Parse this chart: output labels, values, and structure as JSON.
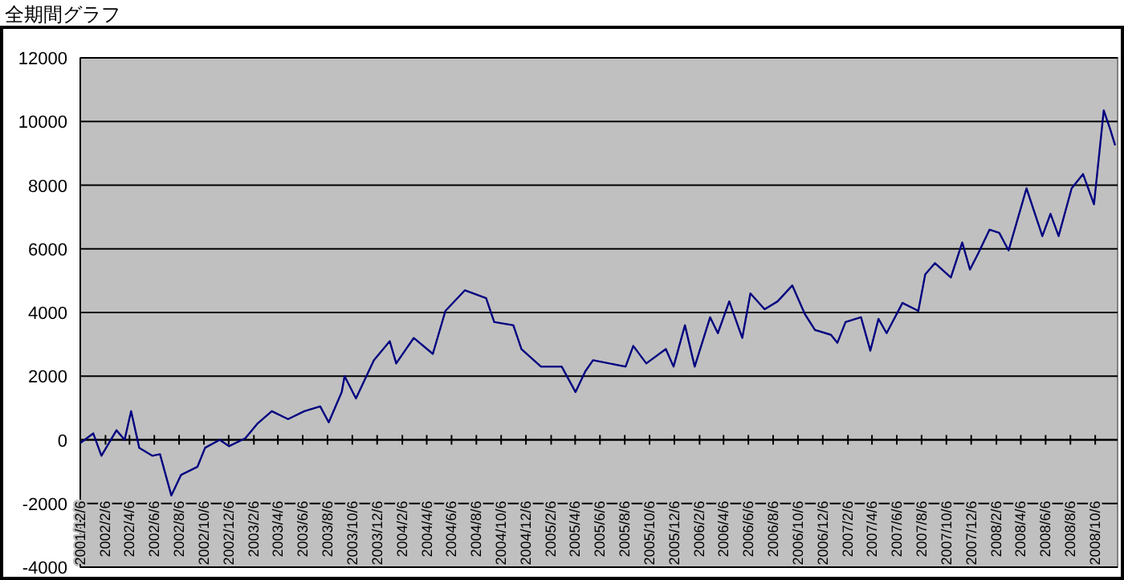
{
  "chart_data": {
    "type": "line",
    "title": "全期間グラフ",
    "x": [
      "2001-12-06",
      "2002-01-07",
      "2002-01-27",
      "2002-03-05",
      "2002-03-25",
      "2002-04-10",
      "2002-04-30",
      "2002-06-01",
      "2002-06-20",
      "2002-07-18",
      "2002-08-11",
      "2002-09-20",
      "2002-10-09",
      "2002-11-14",
      "2002-12-07",
      "2003-01-16",
      "2003-02-14",
      "2003-03-22",
      "2003-05-01",
      "2003-06-10",
      "2003-07-19",
      "2003-08-09",
      "2003-09-10",
      "2003-09-17",
      "2003-10-15",
      "2003-11-28",
      "2004-01-06",
      "2004-01-22",
      "2004-03-05",
      "2004-04-21",
      "2004-05-22",
      "2004-07-09",
      "2004-08-30",
      "2004-09-19",
      "2004-11-05",
      "2004-11-25",
      "2005-01-12",
      "2005-03-04",
      "2005-04-07",
      "2005-05-01",
      "2005-05-20",
      "2005-08-08",
      "2005-08-27",
      "2005-09-28",
      "2005-11-15",
      "2005-12-04",
      "2006-01-01",
      "2006-01-25",
      "2006-03-04",
      "2006-03-23",
      "2006-04-20",
      "2006-05-22",
      "2006-06-11",
      "2006-07-16",
      "2006-08-17",
      "2006-09-22",
      "2006-10-23",
      "2006-11-17",
      "2006-12-26",
      "2007-01-11",
      "2007-01-31",
      "2007-03-10",
      "2007-04-02",
      "2007-04-22",
      "2007-05-12",
      "2007-06-20",
      "2007-07-29",
      "2007-08-15",
      "2007-09-08",
      "2007-10-17",
      "2007-11-14",
      "2007-12-03",
      "2007-12-23",
      "2008-01-20",
      "2008-02-13",
      "2008-03-07",
      "2008-04-20",
      "2008-05-29",
      "2008-06-18",
      "2008-07-08",
      "2008-08-09",
      "2008-09-06",
      "2008-10-03",
      "2008-10-27",
      "2008-11-12",
      "2008-11-24"
    ],
    "series": [
      {
        "color": "#000080",
        "values": [
          -100,
          200,
          -500,
          300,
          0,
          900,
          -250,
          -500,
          -450,
          -1750,
          -1100,
          -850,
          -250,
          0,
          -200,
          50,
          500,
          900,
          650,
          900,
          1050,
          550,
          1500,
          2000,
          1300,
          2500,
          3100,
          2400,
          3200,
          2700,
          4050,
          4700,
          4450,
          3700,
          3600,
          2850,
          2300,
          2300,
          1500,
          2150,
          2500,
          2300,
          2950,
          2400,
          2850,
          2300,
          3600,
          2300,
          3850,
          3350,
          4350,
          3200,
          4600,
          4100,
          4350,
          4850,
          3950,
          3450,
          3300,
          3050,
          3700,
          3850,
          2800,
          3800,
          3350,
          4300,
          4050,
          5200,
          5550,
          5100,
          6200,
          5350,
          5850,
          6600,
          6500,
          5950,
          7900,
          6400,
          7100,
          6400,
          7900,
          8350,
          7400,
          10350,
          9750,
          9250
        ]
      }
    ],
    "xlim": [
      "2001-12-06",
      "2008-11-30"
    ],
    "xticks": [
      {
        "value": "2001-12-06",
        "label": "2001/12/6"
      },
      {
        "value": "2002-02-06",
        "label": "2002/2/6"
      },
      {
        "value": "2002-04-06",
        "label": "2002/4/6"
      },
      {
        "value": "2002-06-06",
        "label": "2002/6/6"
      },
      {
        "value": "2002-08-06",
        "label": "2002/8/6"
      },
      {
        "value": "2002-10-06",
        "label": "2002/10/6"
      },
      {
        "value": "2002-12-06",
        "label": "2002/12/6"
      },
      {
        "value": "2003-02-06",
        "label": "2003/2/6"
      },
      {
        "value": "2003-04-06",
        "label": "2003/4/6"
      },
      {
        "value": "2003-06-06",
        "label": "2003/6/6"
      },
      {
        "value": "2003-08-06",
        "label": "2003/8/6"
      },
      {
        "value": "2003-10-06",
        "label": "2003/10/6"
      },
      {
        "value": "2003-12-06",
        "label": "2003/12/6"
      },
      {
        "value": "2004-02-06",
        "label": "2004/2/6"
      },
      {
        "value": "2004-04-06",
        "label": "2004/4/6"
      },
      {
        "value": "2004-06-06",
        "label": "2004/6/6"
      },
      {
        "value": "2004-08-06",
        "label": "2004/8/6"
      },
      {
        "value": "2004-10-06",
        "label": "2004/10/6"
      },
      {
        "value": "2004-12-06",
        "label": "2004/12/6"
      },
      {
        "value": "2005-02-06",
        "label": "2005/2/6"
      },
      {
        "value": "2005-04-06",
        "label": "2005/4/6"
      },
      {
        "value": "2005-06-06",
        "label": "2005/6/6"
      },
      {
        "value": "2005-08-06",
        "label": "2005/8/6"
      },
      {
        "value": "2005-10-06",
        "label": "2005/10/6"
      },
      {
        "value": "2005-12-06",
        "label": "2005/12/6"
      },
      {
        "value": "2006-02-06",
        "label": "2006/2/6"
      },
      {
        "value": "2006-04-06",
        "label": "2006/4/6"
      },
      {
        "value": "2006-06-06",
        "label": "2006/6/6"
      },
      {
        "value": "2006-08-06",
        "label": "2006/8/6"
      },
      {
        "value": "2006-10-06",
        "label": "2006/10/6"
      },
      {
        "value": "2006-12-06",
        "label": "2006/12/6"
      },
      {
        "value": "2007-02-06",
        "label": "2007/2/6"
      },
      {
        "value": "2007-04-06",
        "label": "2007/4/6"
      },
      {
        "value": "2007-06-06",
        "label": "2007/6/6"
      },
      {
        "value": "2007-08-06",
        "label": "2007/8/6"
      },
      {
        "value": "2007-10-06",
        "label": "2007/10/6"
      },
      {
        "value": "2007-12-06",
        "label": "2007/12/6"
      },
      {
        "value": "2008-02-06",
        "label": "2008/2/6"
      },
      {
        "value": "2008-04-06",
        "label": "2008/4/6"
      },
      {
        "value": "2008-06-06",
        "label": "2008/6/6"
      },
      {
        "value": "2008-08-06",
        "label": "2008/8/6"
      },
      {
        "value": "2008-10-06",
        "label": "2008/10/6"
      }
    ],
    "ylim": [
      -4000,
      12000
    ],
    "yticks": [
      -4000,
      -2000,
      0,
      2000,
      4000,
      6000,
      8000,
      10000,
      12000
    ],
    "grid": "y"
  }
}
